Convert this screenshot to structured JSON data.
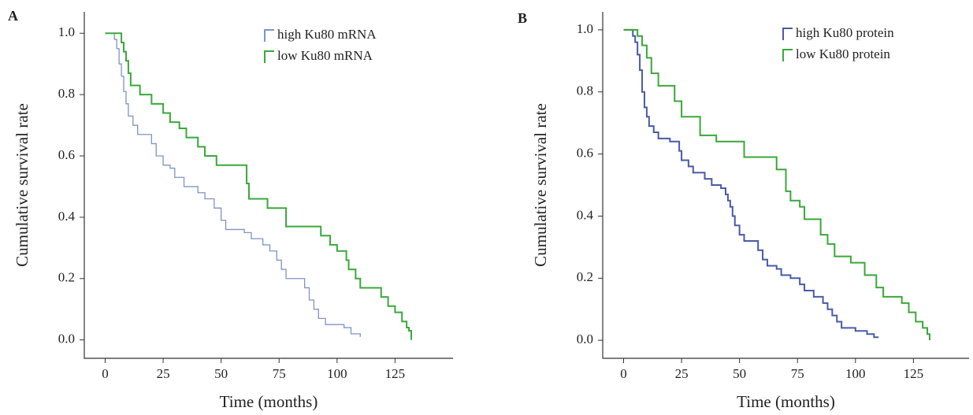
{
  "chart_data": [
    {
      "type": "line",
      "step": true,
      "panel": "A",
      "xlabel": "Time (months)",
      "ylabel": "Cumulative survival rate",
      "xlim": [
        -9,
        150
      ],
      "ylim": [
        -0.06,
        1.07
      ],
      "xticks": [
        0,
        25,
        50,
        75,
        100,
        125
      ],
      "yticks": [
        {
          "value": 0,
          "label": "0.0"
        },
        0.2,
        0.4,
        0.6,
        0.8,
        {
          "value": 1,
          "label": "1.0"
        }
      ],
      "legend": "upper right",
      "series": [
        {
          "name": "high Ku80 mRNA",
          "color": "#8193c6",
          "x": [
            0,
            4,
            5,
            6,
            7,
            8,
            9,
            10,
            12,
            14,
            20,
            22,
            25,
            28,
            30,
            34,
            40,
            43,
            47,
            50,
            52,
            60,
            63,
            68,
            71,
            74,
            76,
            78,
            86,
            88,
            90,
            92,
            95,
            103,
            106,
            110
          ],
          "values": [
            1.0,
            0.98,
            0.95,
            0.9,
            0.86,
            0.81,
            0.77,
            0.73,
            0.7,
            0.67,
            0.64,
            0.6,
            0.57,
            0.56,
            0.53,
            0.5,
            0.48,
            0.46,
            0.43,
            0.39,
            0.36,
            0.35,
            0.33,
            0.31,
            0.29,
            0.26,
            0.23,
            0.2,
            0.17,
            0.13,
            0.1,
            0.07,
            0.05,
            0.04,
            0.02,
            0.01
          ]
        },
        {
          "name": "low Ku80 mRNA",
          "color": "#3aa83a",
          "x": [
            0,
            7,
            8,
            9,
            10,
            11,
            15,
            20,
            25,
            28,
            32,
            35,
            40,
            43,
            48,
            61,
            62,
            70,
            78,
            93,
            97,
            100,
            104,
            105,
            108,
            110,
            119,
            122,
            125,
            128,
            130,
            131,
            132
          ],
          "values": [
            1.0,
            0.97,
            0.94,
            0.91,
            0.87,
            0.83,
            0.8,
            0.77,
            0.74,
            0.71,
            0.69,
            0.66,
            0.63,
            0.6,
            0.57,
            0.51,
            0.46,
            0.43,
            0.37,
            0.34,
            0.31,
            0.29,
            0.26,
            0.23,
            0.2,
            0.17,
            0.14,
            0.11,
            0.09,
            0.06,
            0.04,
            0.03,
            0.0
          ]
        }
      ]
    },
    {
      "type": "line",
      "step": true,
      "panel": "B",
      "xlabel": "Time (months)",
      "ylabel": "Cumulative survival rate",
      "xlim": [
        -9,
        149
      ],
      "ylim": [
        -0.058,
        1.058
      ],
      "xticks": [
        0,
        25,
        50,
        75,
        100,
        125
      ],
      "yticks": [
        {
          "value": 0,
          "label": "0.0"
        },
        0.2,
        0.4,
        0.6,
        0.8,
        {
          "value": 1,
          "label": "1.0"
        }
      ],
      "legend": "upper right",
      "series": [
        {
          "name": "high Ku80 protein",
          "color": "#4a5aa8",
          "x": [
            0,
            4,
            5,
            6,
            7,
            8,
            9,
            10,
            11,
            13,
            15,
            20,
            24,
            25,
            28,
            30,
            35,
            38,
            42,
            44,
            45,
            46,
            47,
            48,
            50,
            52,
            58,
            60,
            62,
            66,
            68,
            72,
            76,
            78,
            82,
            86,
            88,
            90,
            92,
            94,
            100,
            105,
            108,
            110
          ],
          "values": [
            1.0,
            0.98,
            0.96,
            0.92,
            0.87,
            0.8,
            0.75,
            0.72,
            0.69,
            0.67,
            0.65,
            0.64,
            0.61,
            0.58,
            0.56,
            0.54,
            0.52,
            0.5,
            0.49,
            0.47,
            0.45,
            0.43,
            0.4,
            0.37,
            0.34,
            0.32,
            0.29,
            0.26,
            0.24,
            0.23,
            0.21,
            0.2,
            0.18,
            0.16,
            0.14,
            0.12,
            0.1,
            0.08,
            0.06,
            0.04,
            0.03,
            0.02,
            0.01,
            0.01
          ]
        },
        {
          "name": "low Ku80 protein",
          "color": "#3aa83a",
          "x": [
            0,
            6,
            8,
            10,
            12,
            15,
            22,
            25,
            33,
            40,
            52,
            66,
            70,
            72,
            76,
            78,
            85,
            88,
            91,
            98,
            104,
            109,
            112,
            120,
            123,
            126,
            129,
            131,
            132
          ],
          "values": [
            1.0,
            0.98,
            0.95,
            0.91,
            0.86,
            0.82,
            0.77,
            0.72,
            0.66,
            0.64,
            0.59,
            0.55,
            0.48,
            0.45,
            0.43,
            0.39,
            0.34,
            0.31,
            0.27,
            0.25,
            0.21,
            0.17,
            0.14,
            0.12,
            0.09,
            0.06,
            0.04,
            0.02,
            0.0
          ]
        }
      ]
    }
  ]
}
